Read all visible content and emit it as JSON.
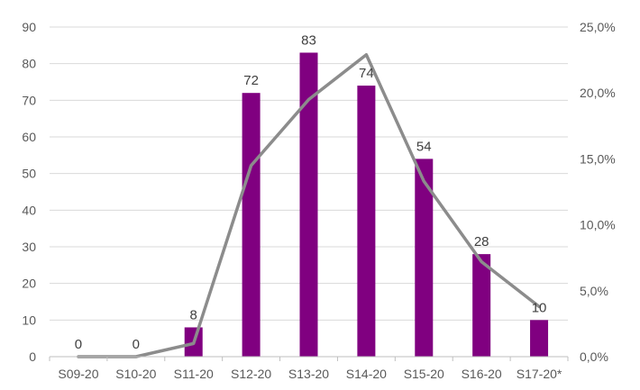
{
  "chart_data": {
    "type": "bar",
    "categories": [
      "S09-20",
      "S10-20",
      "S11-20",
      "S12-20",
      "S13-20",
      "S14-20",
      "S15-20",
      "S16-20",
      "S17-20*"
    ],
    "series": [
      {
        "type": "bar",
        "axis": "left",
        "values": [
          0,
          0,
          8,
          72,
          83,
          74,
          54,
          28,
          10
        ],
        "data_labels": [
          "0",
          "0",
          "8",
          "72",
          "83",
          "74",
          "54",
          "28",
          "10"
        ],
        "color": "#800080"
      },
      {
        "type": "line",
        "axis": "right",
        "values": [
          0.0,
          0.0,
          1.0,
          14.5,
          19.5,
          22.9,
          13.3,
          7.2,
          3.8
        ],
        "color": "#8c8c8c"
      }
    ],
    "y_left": {
      "min": 0,
      "max": 90,
      "step": 10,
      "tick_labels": [
        "0",
        "10",
        "20",
        "30",
        "40",
        "50",
        "60",
        "70",
        "80",
        "90"
      ]
    },
    "y_right": {
      "min": 0,
      "max": 25,
      "step": 5,
      "tick_labels": [
        "0,0%",
        "5,0%",
        "10,0%",
        "15,0%",
        "20,0%",
        "25,0%"
      ]
    },
    "title": "",
    "xlabel": "",
    "ylabel": "",
    "grid": true,
    "legend": "none"
  }
}
